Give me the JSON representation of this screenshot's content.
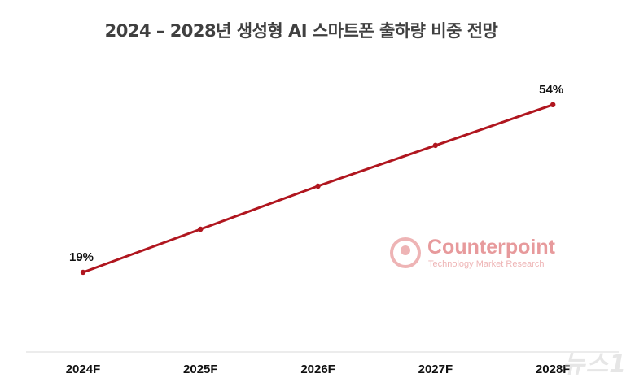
{
  "chart_data": {
    "type": "line",
    "title": "2024 – 2028년 생성형 AI 스마트폰 출하량 비중 전망",
    "categories": [
      "2024F",
      "2025F",
      "2026F",
      "2027F",
      "2028F"
    ],
    "series": [
      {
        "values": [
          19,
          28,
          37,
          45.5,
          54
        ],
        "color": "#b0161f"
      }
    ],
    "data_labels": [
      {
        "index": 0,
        "text": "19%"
      },
      {
        "index": 4,
        "text": "54%"
      }
    ],
    "xlabel": "",
    "ylabel": "",
    "ylim": [
      10,
      65
    ],
    "grid": false
  },
  "watermark": {
    "name": "Counterpoint",
    "subtitle": "Technology Market Research",
    "color": "#e79a9c"
  },
  "source_logo": "뉴스1",
  "colors": {
    "axis": "#d9d9d9",
    "text": "#111111",
    "title": "#404040"
  }
}
